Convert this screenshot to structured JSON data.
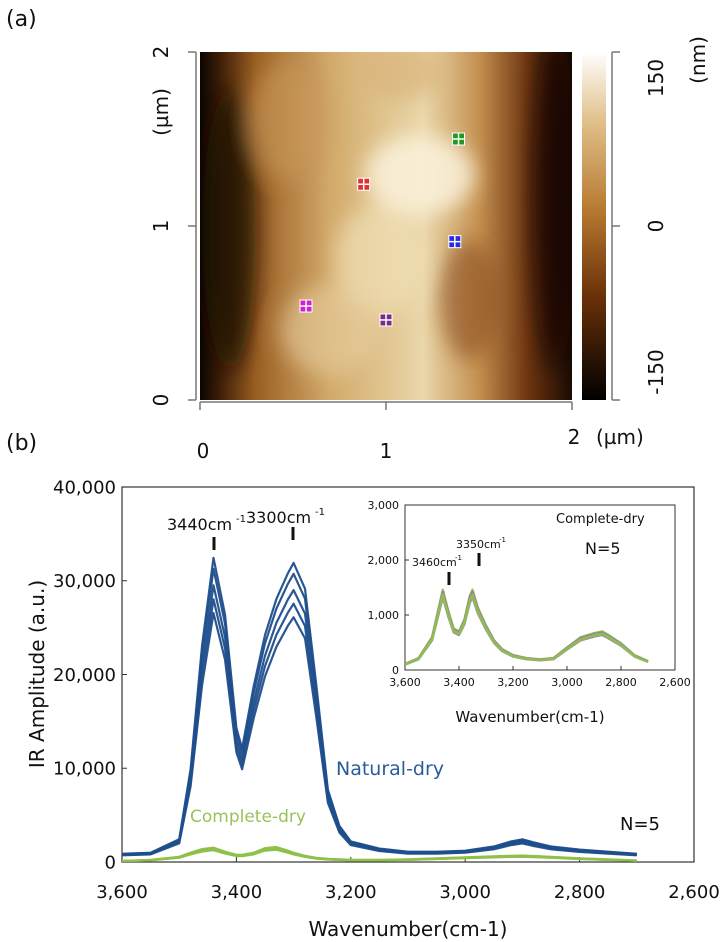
{
  "panel_a": {
    "panel_label": "(a)",
    "x_ticks": [
      "0",
      "1",
      "2"
    ],
    "x_unit": "(µm)",
    "y_ticks": [
      "0",
      "1",
      "2"
    ],
    "y_unit": "(µm)",
    "colorbar_ticks": [
      "150",
      "0",
      "-150"
    ],
    "colorbar_unit": "(nm)",
    "colormap": [
      "#000000",
      "#6b3208",
      "#b87a32",
      "#e0c08a",
      "#ffffff"
    ],
    "markers": [
      {
        "x": 0.88,
        "y": 1.24,
        "color": "#e03030"
      },
      {
        "x": 1.39,
        "y": 1.5,
        "color": "#1f9a1f"
      },
      {
        "x": 1.37,
        "y": 0.91,
        "color": "#2a2ae0"
      },
      {
        "x": 0.57,
        "y": 0.54,
        "color": "#d020d0"
      },
      {
        "x": 1.0,
        "y": 0.46,
        "color": "#7a2a8a"
      }
    ]
  },
  "panel_b": {
    "panel_label": "(b)",
    "n_label": "N=5",
    "annotations": {
      "natural": "Natural-dry",
      "complete": "Complete-dry",
      "peak1": "3440cm",
      "peak2": "3300cm",
      "sup": "-1"
    }
  },
  "inset": {
    "title": "Complete-dry",
    "n_label": "N=5",
    "peak1": "3460cm",
    "peak2": "3350cm",
    "sup": "-1"
  },
  "chart_data": [
    {
      "type": "heatmap",
      "title": "",
      "xlabel": "(µm)",
      "ylabel": "(µm)",
      "xlim": [
        0,
        2
      ],
      "ylim": [
        0,
        2
      ],
      "colorbar_label": "(nm)",
      "colorbar_range": [
        -150,
        150
      ],
      "colors": [
        "#000000",
        "#6b3208",
        "#b87a32",
        "#e0c08a",
        "#ffffff"
      ],
      "description_values": {
        "markers_um": [
          [
            0.88,
            1.24
          ],
          [
            1.39,
            1.5
          ],
          [
            1.37,
            0.91
          ],
          [
            0.57,
            0.54
          ],
          [
            1.0,
            0.46
          ]
        ]
      }
    },
    {
      "type": "line",
      "title": "",
      "xlabel": "Wavenumber(cm-1)",
      "ylabel": "IR Amplitude (a.u.)",
      "xlim": [
        3600,
        2600
      ],
      "ylim": [
        0,
        40000
      ],
      "x_reversed": true,
      "x_ticks": [
        "3,600",
        "3,400",
        "3,200",
        "3,000",
        "2,800",
        "2,600"
      ],
      "y_ticks": [
        "0",
        "10,000",
        "20,000",
        "30,000",
        "40,000"
      ],
      "x": [
        3600,
        3550,
        3500,
        3480,
        3460,
        3440,
        3420,
        3400,
        3390,
        3370,
        3350,
        3330,
        3310,
        3300,
        3280,
        3260,
        3240,
        3220,
        3200,
        3150,
        3100,
        3050,
        3000,
        2950,
        2920,
        2900,
        2880,
        2850,
        2800,
        2750,
        2700
      ],
      "series": [
        {
          "name": "Natural-dry",
          "color": "#1f4e8c",
          "values": [
            800,
            900,
            2200,
            9000,
            21000,
            29500,
            24000,
            13000,
            11000,
            17000,
            22000,
            25500,
            28000,
            29000,
            26500,
            17000,
            7000,
            3500,
            2000,
            1300,
            1000,
            1000,
            1100,
            1500,
            2000,
            2200,
            1900,
            1500,
            1200,
            1000,
            800
          ]
        },
        {
          "name": "Complete-dry",
          "color": "#8fc04a",
          "values": [
            100,
            200,
            500,
            900,
            1250,
            1400,
            1000,
            700,
            700,
            900,
            1350,
            1450,
            1100,
            900,
            600,
            400,
            300,
            250,
            200,
            200,
            250,
            350,
            450,
            550,
            600,
            620,
            580,
            500,
            350,
            250,
            150
          ]
        }
      ]
    },
    {
      "type": "line",
      "title": "Complete-dry",
      "xlabel": "Wavenumber(cm-1)",
      "ylabel": "",
      "xlim": [
        3600,
        2600
      ],
      "ylim": [
        0,
        3000
      ],
      "x_reversed": true,
      "x_ticks": [
        "3,600",
        "3,400",
        "3,200",
        "3,000",
        "2,800",
        "2,600"
      ],
      "y_ticks": [
        "0",
        "1,000",
        "2,000",
        "3,000"
      ],
      "x": [
        3600,
        3550,
        3500,
        3480,
        3460,
        3440,
        3420,
        3400,
        3380,
        3360,
        3350,
        3330,
        3300,
        3270,
        3240,
        3200,
        3150,
        3100,
        3050,
        3000,
        2950,
        2900,
        2870,
        2850,
        2800,
        2750,
        2700
      ],
      "series": [
        {
          "values": [
            100,
            200,
            550,
            950,
            1350,
            1000,
            700,
            650,
            850,
            1250,
            1350,
            1050,
            750,
            500,
            350,
            250,
            200,
            180,
            200,
            380,
            550,
            620,
            650,
            600,
            450,
            250,
            150
          ]
        }
      ]
    }
  ]
}
